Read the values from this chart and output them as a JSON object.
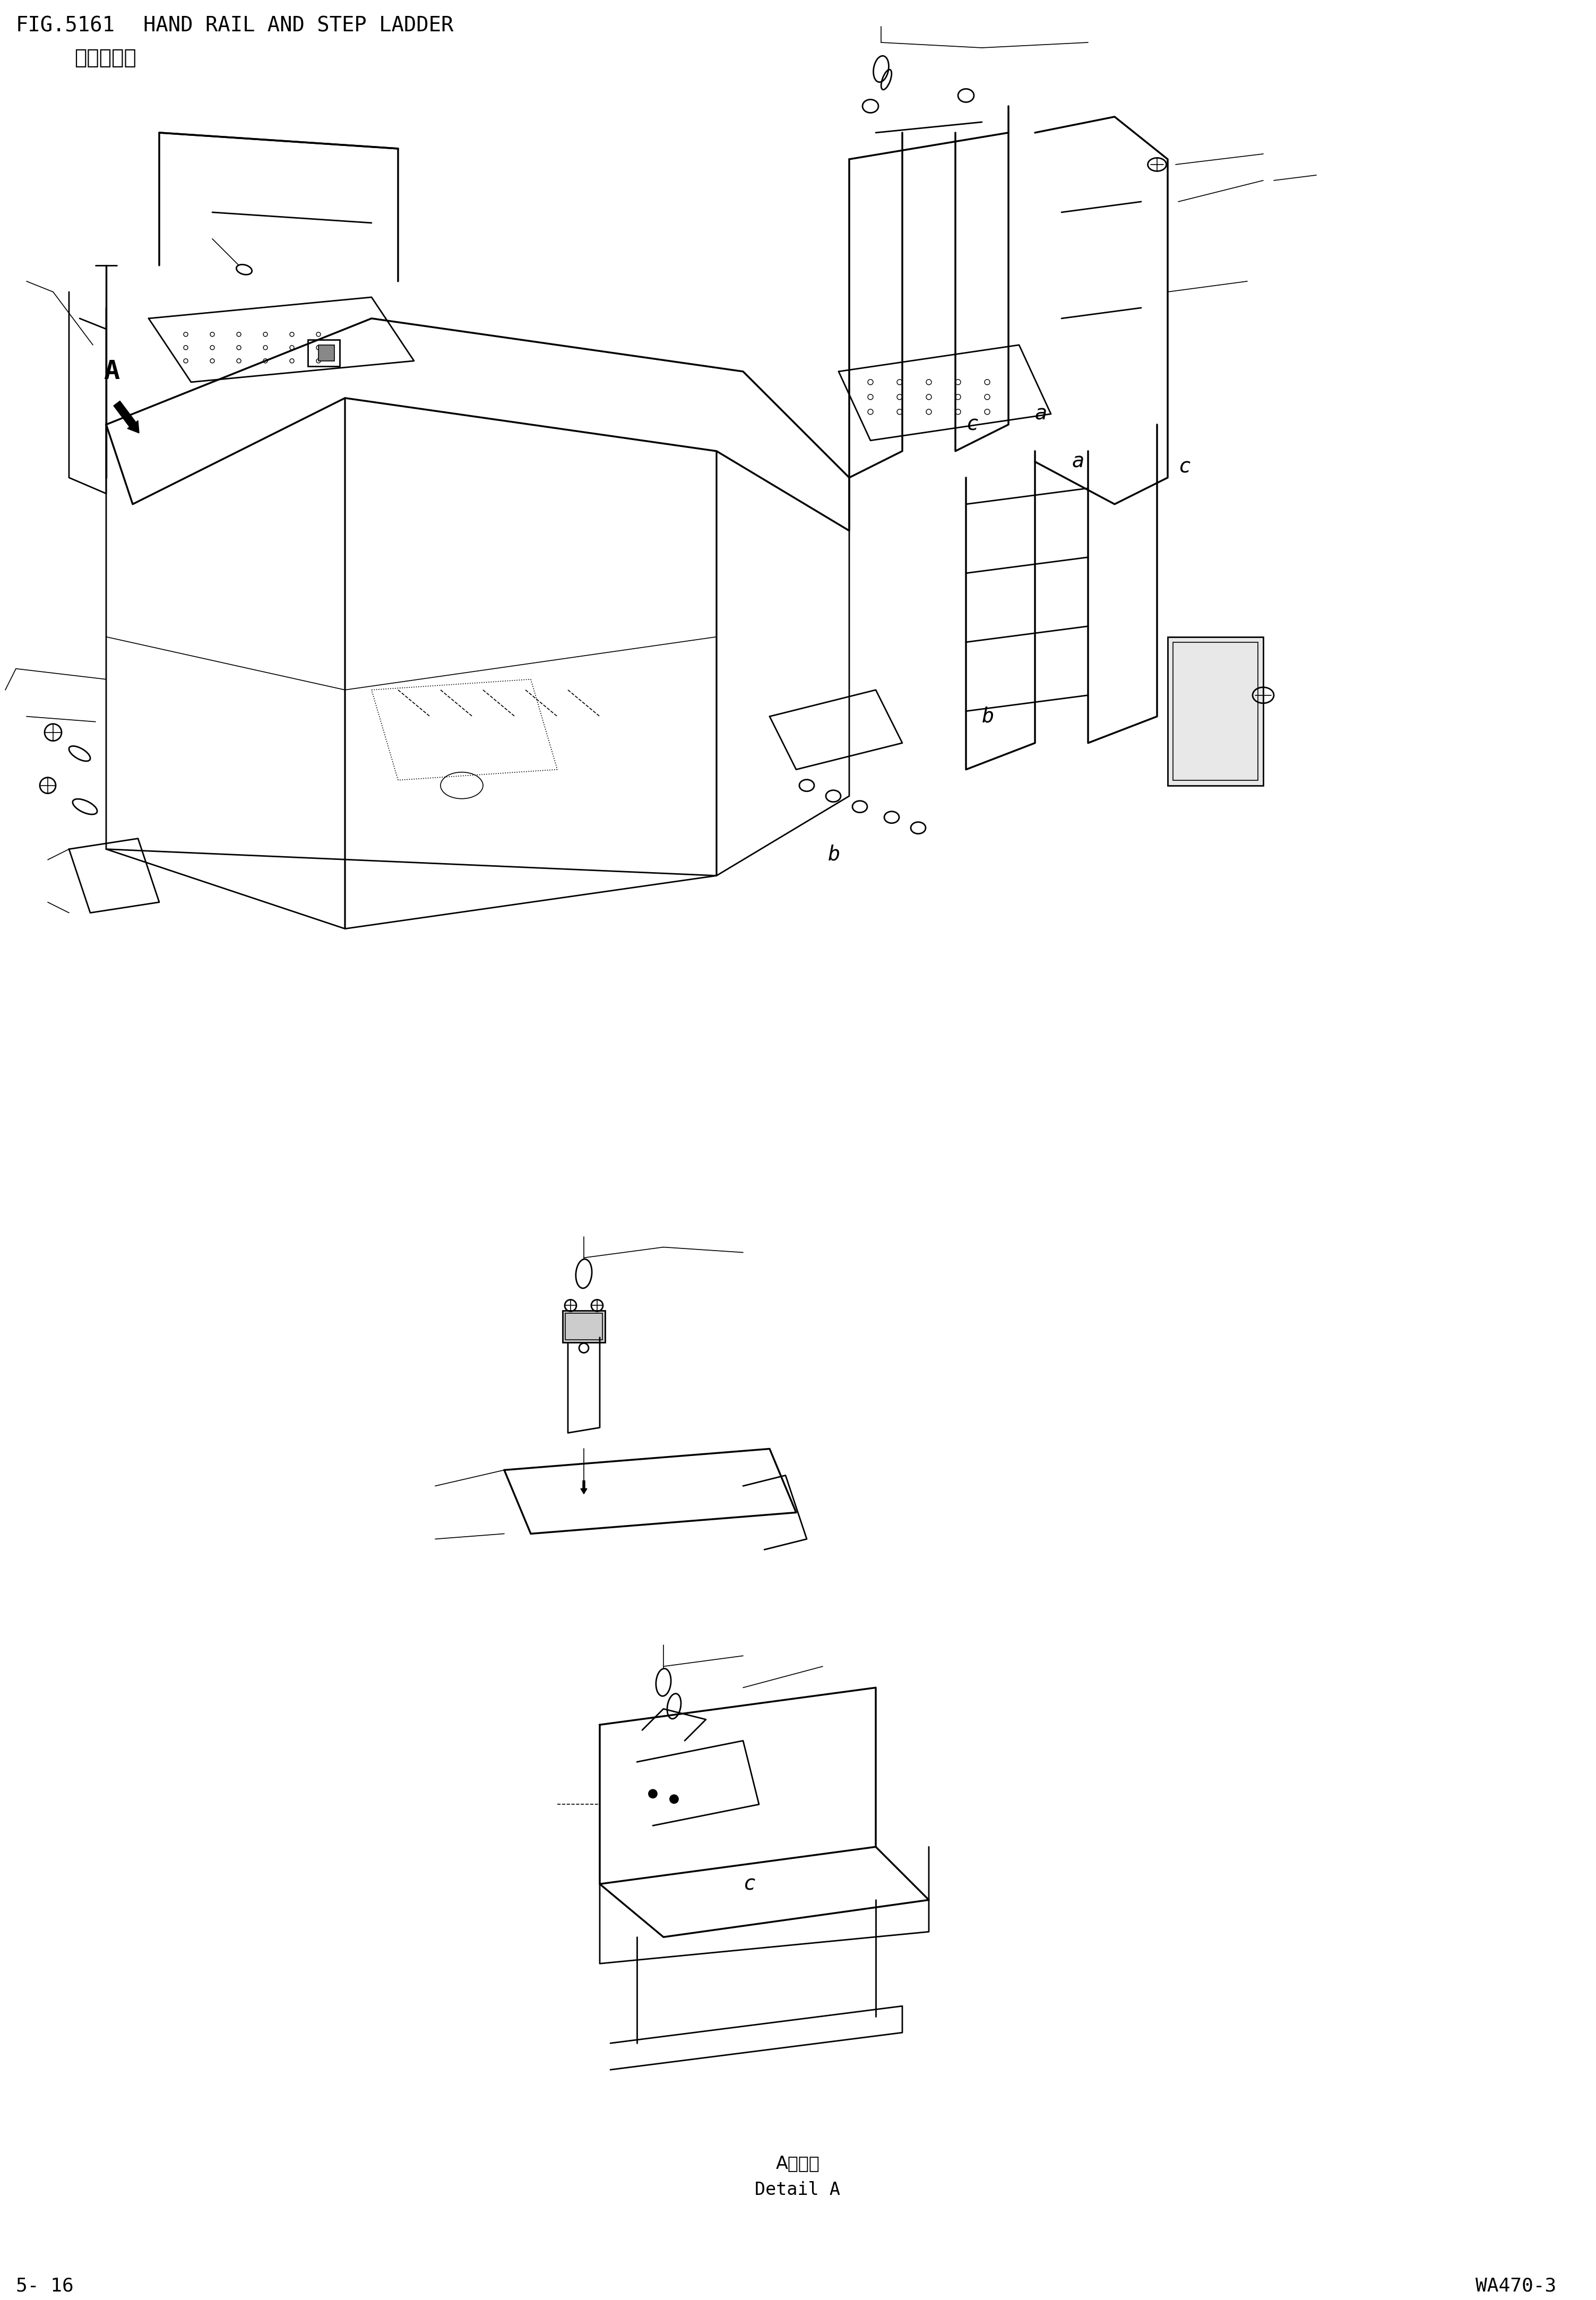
{
  "title_line1": "FIG.5161",
  "title_label1": "HAND RAIL AND STEP LADDER",
  "title_line2": "扶手和梯子",
  "page_left": "5- 16",
  "page_right": "WA470-3",
  "detail_label_cn": "A部详细",
  "detail_label_en": "Detail A",
  "bg_color": "#ffffff",
  "line_color": "#000000",
  "font_size_title": 28,
  "font_size_page": 26,
  "font_size_label": 24,
  "font_size_chinese": 28
}
